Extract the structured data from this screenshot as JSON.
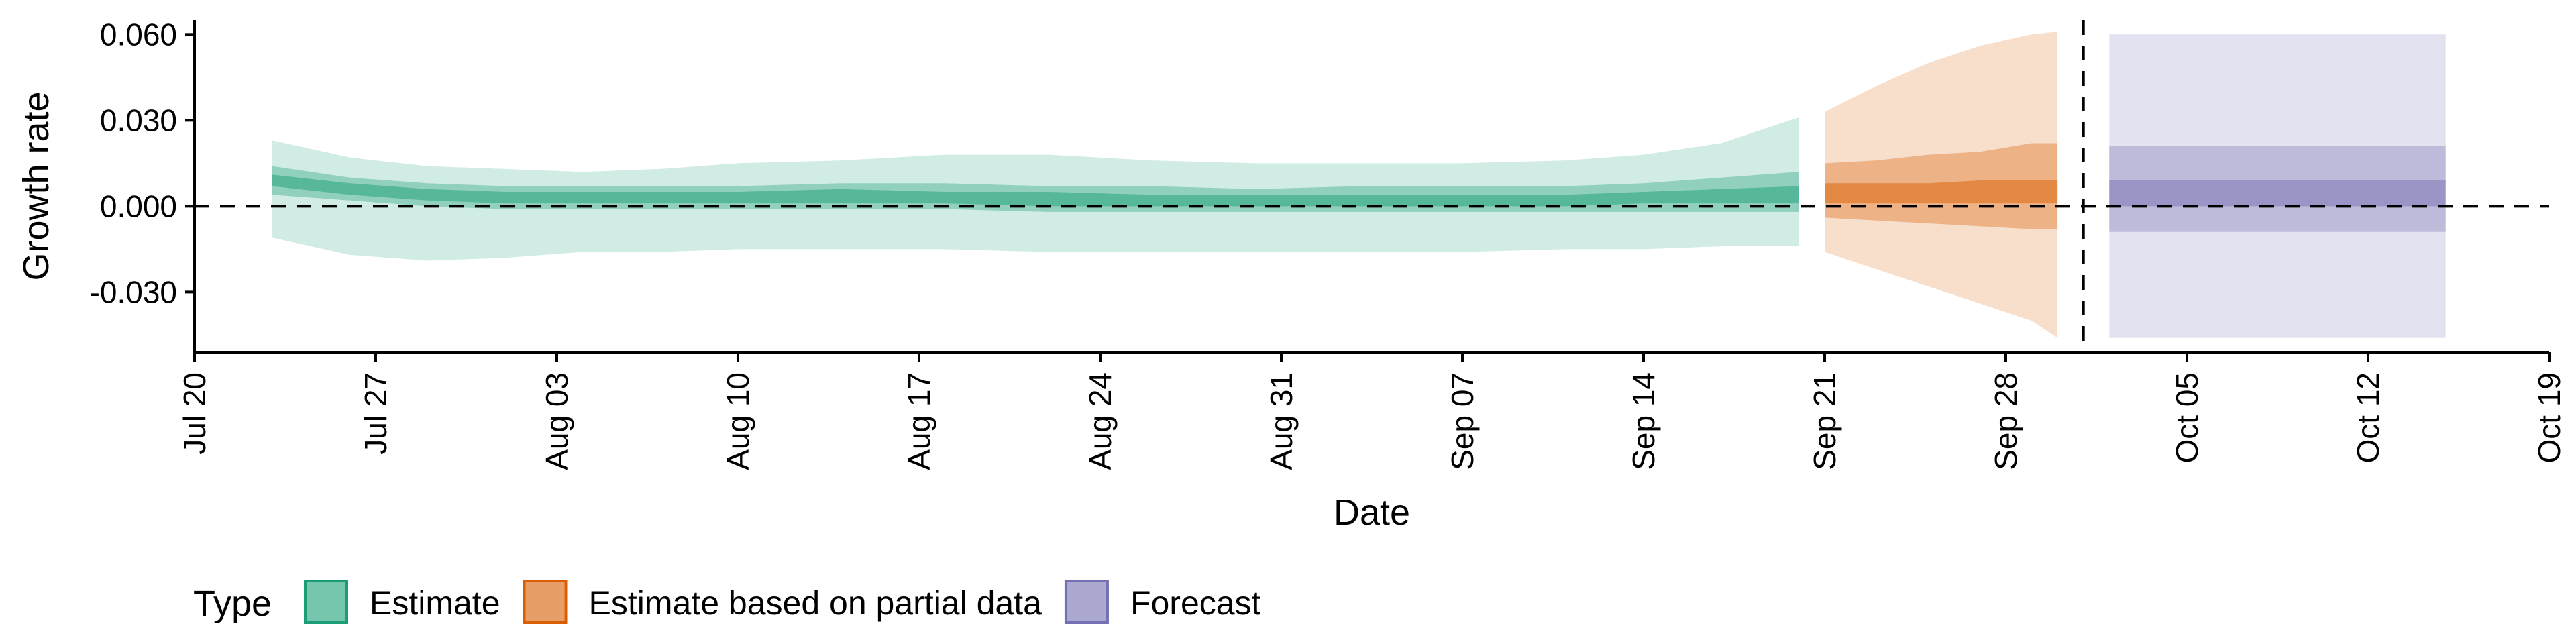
{
  "chart_data": {
    "type": "area",
    "title": "",
    "xlabel": "Date",
    "ylabel": "Growth rate",
    "x_scale": "date",
    "xlim": [
      "2020-07-20",
      "2020-10-19"
    ],
    "ylim": [
      -0.051,
      0.065
    ],
    "x_ticks": [
      {
        "date": "2020-07-20",
        "label": "Jul 20"
      },
      {
        "date": "2020-07-27",
        "label": "Jul 27"
      },
      {
        "date": "2020-08-03",
        "label": "Aug 03"
      },
      {
        "date": "2020-08-10",
        "label": "Aug 10"
      },
      {
        "date": "2020-08-17",
        "label": "Aug 17"
      },
      {
        "date": "2020-08-24",
        "label": "Aug 24"
      },
      {
        "date": "2020-08-31",
        "label": "Aug 31"
      },
      {
        "date": "2020-09-07",
        "label": "Sep 07"
      },
      {
        "date": "2020-09-14",
        "label": "Sep 14"
      },
      {
        "date": "2020-09-21",
        "label": "Sep 21"
      },
      {
        "date": "2020-09-28",
        "label": "Sep 28"
      },
      {
        "date": "2020-10-05",
        "label": "Oct 05"
      },
      {
        "date": "2020-10-12",
        "label": "Oct 12"
      },
      {
        "date": "2020-10-19",
        "label": "Oct 19"
      }
    ],
    "y_ticks": [
      {
        "value": 0.06,
        "label": "0.060"
      },
      {
        "value": 0.03,
        "label": "0.030"
      },
      {
        "value": 0.0,
        "label": "0.000"
      },
      {
        "value": -0.03,
        "label": "-0.030"
      }
    ],
    "hline": 0.0,
    "vline_date": "2020-10-01",
    "grid": false,
    "legend_position": "bottom",
    "legend_title": "Type",
    "series": [
      {
        "name": "Estimate",
        "color": "#1b9e77",
        "x": [
          "2020-07-23",
          "2020-07-26",
          "2020-07-29",
          "2020-08-01",
          "2020-08-04",
          "2020-08-07",
          "2020-08-10",
          "2020-08-14",
          "2020-08-18",
          "2020-08-22",
          "2020-08-26",
          "2020-08-30",
          "2020-09-03",
          "2020-09-07",
          "2020-09-11",
          "2020-09-14",
          "2020-09-17",
          "2020-09-20"
        ],
        "outer_lower": [
          -0.011,
          -0.017,
          -0.019,
          -0.018,
          -0.016,
          -0.016,
          -0.015,
          -0.015,
          -0.015,
          -0.016,
          -0.016,
          -0.016,
          -0.016,
          -0.016,
          -0.015,
          -0.015,
          -0.014,
          -0.014
        ],
        "outer_upper": [
          0.023,
          0.017,
          0.014,
          0.013,
          0.012,
          0.013,
          0.015,
          0.016,
          0.018,
          0.018,
          0.016,
          0.015,
          0.015,
          0.015,
          0.016,
          0.018,
          0.022,
          0.031
        ],
        "inner_lower": [
          0.004,
          0.002,
          0.0,
          -0.001,
          -0.001,
          -0.001,
          -0.001,
          -0.001,
          -0.001,
          -0.002,
          -0.002,
          -0.002,
          -0.002,
          -0.002,
          -0.002,
          -0.002,
          -0.002,
          -0.002
        ],
        "inner_upper": [
          0.014,
          0.01,
          0.008,
          0.007,
          0.007,
          0.007,
          0.007,
          0.008,
          0.008,
          0.007,
          0.007,
          0.006,
          0.007,
          0.007,
          0.007,
          0.008,
          0.01,
          0.012
        ],
        "core_lower": [
          0.007,
          0.004,
          0.002,
          0.001,
          0.001,
          0.001,
          0.001,
          0.001,
          0.001,
          0.0,
          0.0,
          0.0,
          0.0,
          0.0,
          0.0,
          0.001,
          0.001,
          0.001
        ],
        "core_upper": [
          0.011,
          0.008,
          0.006,
          0.005,
          0.005,
          0.005,
          0.005,
          0.006,
          0.005,
          0.005,
          0.004,
          0.004,
          0.004,
          0.004,
          0.004,
          0.005,
          0.006,
          0.007
        ]
      },
      {
        "name": "Estimate based on partial data",
        "color": "#d95f02",
        "x": [
          "2020-09-21",
          "2020-09-23",
          "2020-09-25",
          "2020-09-27",
          "2020-09-29",
          "2020-09-30"
        ],
        "outer_lower": [
          -0.016,
          -0.022,
          -0.028,
          -0.034,
          -0.04,
          -0.046
        ],
        "outer_upper": [
          0.033,
          0.042,
          0.05,
          0.056,
          0.06,
          0.061
        ],
        "inner_lower": [
          -0.004,
          -0.005,
          -0.006,
          -0.007,
          -0.008,
          -0.008
        ],
        "inner_upper": [
          0.015,
          0.016,
          0.018,
          0.019,
          0.022,
          0.022
        ],
        "core_lower": [
          0.001,
          0.001,
          0.001,
          0.001,
          0.001,
          0.001
        ],
        "core_upper": [
          0.008,
          0.008,
          0.008,
          0.009,
          0.009,
          0.009
        ]
      },
      {
        "name": "Forecast",
        "color": "#7570b3",
        "x": [
          "2020-10-02",
          "2020-10-15"
        ],
        "outer_lower": [
          -0.046,
          -0.046
        ],
        "outer_upper": [
          0.06,
          0.06
        ],
        "inner_lower": [
          -0.009,
          -0.009
        ],
        "inner_upper": [
          0.021,
          0.021
        ],
        "core_lower": [
          0.0,
          0.0
        ],
        "core_upper": [
          0.009,
          0.009
        ]
      }
    ]
  }
}
